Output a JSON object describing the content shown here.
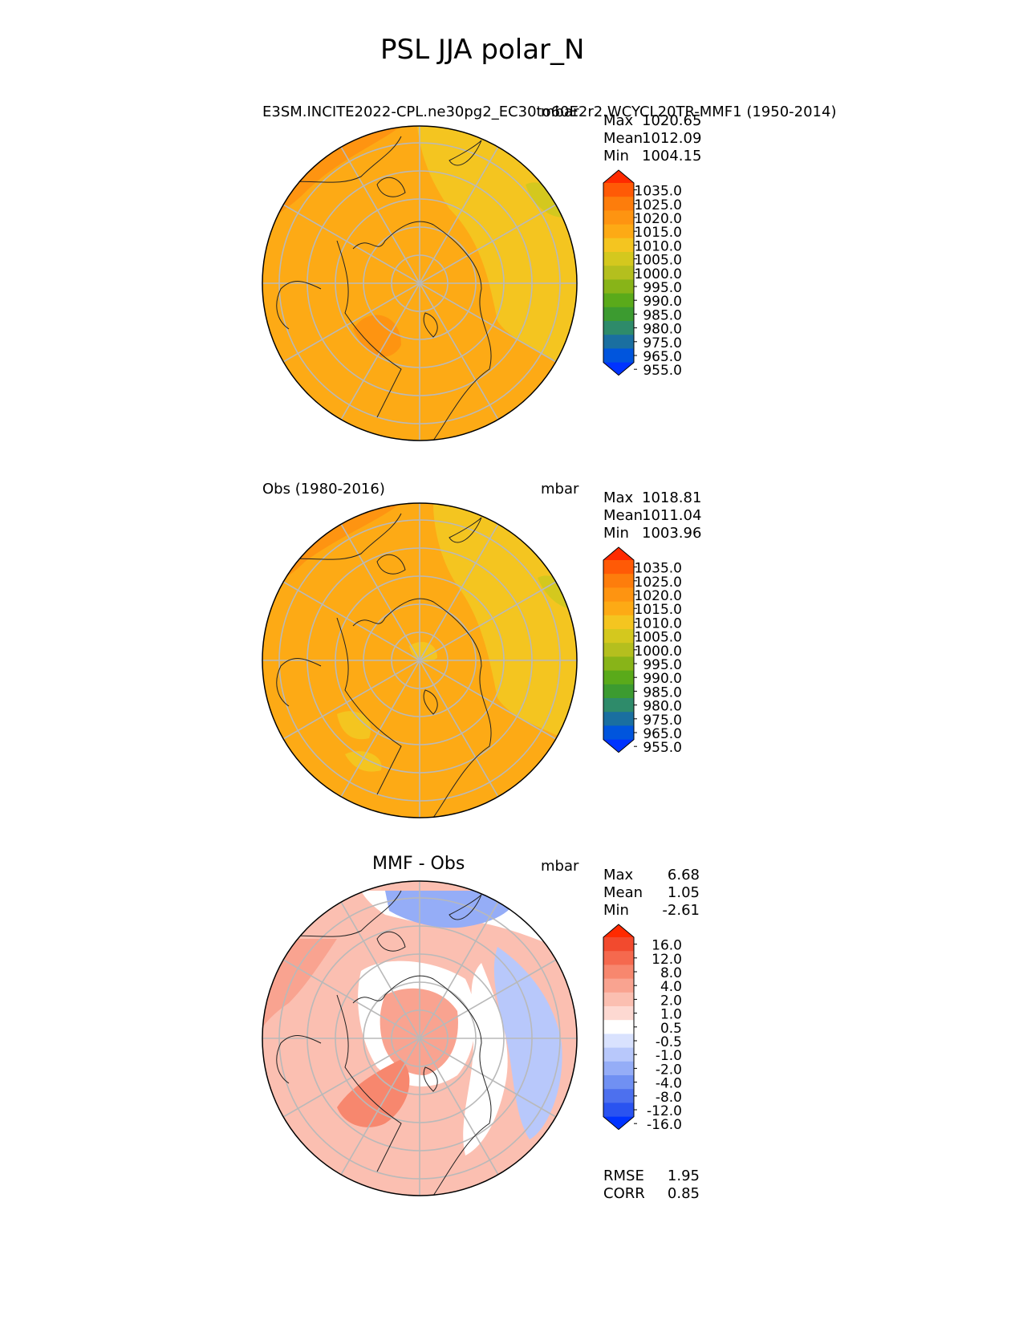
{
  "figure": {
    "title": "PSL JJA polar_N"
  },
  "panels": [
    {
      "id": "model",
      "left_title": "E3SM.INCITE2022-CPL.ne30pg2_EC30to60E2r2.WCYCL20TR-MMF1 (1950-2014)",
      "right_title": "mbar",
      "stats": [
        {
          "label": "Max",
          "value": "1020.65"
        },
        {
          "label": "Mean",
          "value": "1012.09"
        },
        {
          "label": "Min",
          "value": "1004.15"
        }
      ],
      "colorbar_labels": [
        "1035.0",
        "1025.0",
        "1020.0",
        "1015.0",
        "1010.0",
        "1005.0",
        "1000.0",
        "995.0",
        "990.0",
        "985.0",
        "980.0",
        "975.0",
        "965.0",
        "955.0"
      ]
    },
    {
      "id": "obs",
      "left_title": "Obs (1980-2016)",
      "right_title": "mbar",
      "stats": [
        {
          "label": "Max",
          "value": "1018.81"
        },
        {
          "label": "Mean",
          "value": "1011.04"
        },
        {
          "label": "Min",
          "value": "1003.96"
        }
      ],
      "colorbar_labels": [
        "1035.0",
        "1025.0",
        "1020.0",
        "1015.0",
        "1010.0",
        "1005.0",
        "1000.0",
        "995.0",
        "990.0",
        "985.0",
        "980.0",
        "975.0",
        "965.0",
        "955.0"
      ]
    },
    {
      "id": "diff",
      "center_title": "MMF - Obs",
      "right_title": "mbar",
      "stats": [
        {
          "label": "Max",
          "value": "6.68"
        },
        {
          "label": "Mean",
          "value": "1.05"
        },
        {
          "label": "Min",
          "value": "-2.61"
        }
      ],
      "colorbar_labels": [
        "16.0",
        "12.0",
        "8.0",
        "4.0",
        "2.0",
        "1.0",
        "0.5",
        "-0.5",
        "-1.0",
        "-2.0",
        "-4.0",
        "-8.0",
        "-12.0",
        "-16.0"
      ],
      "metrics": [
        {
          "label": "RMSE",
          "value": "1.95"
        },
        {
          "label": "CORR",
          "value": "0.85"
        }
      ]
    }
  ],
  "colors": {
    "abs_scale": [
      "#0033ff",
      "#0055dd",
      "#1a6fa0",
      "#2e8b6a",
      "#3c9b30",
      "#5aaa1a",
      "#88b418",
      "#b4bf1e",
      "#d4c81e",
      "#f4c520",
      "#fdaa15",
      "#fe9411",
      "#fd7d0c",
      "#ff5a06",
      "#ff2a00"
    ],
    "diff_scale": [
      "#0033ff",
      "#2a53f0",
      "#4d70ee",
      "#7090f3",
      "#95adf7",
      "#b8c8fb",
      "#d9e2fe",
      "#ffffff",
      "#fdd9d2",
      "#fbbfb1",
      "#f9a390",
      "#f7876e",
      "#f5694e",
      "#f24a2e",
      "#ff2a00"
    ]
  }
}
